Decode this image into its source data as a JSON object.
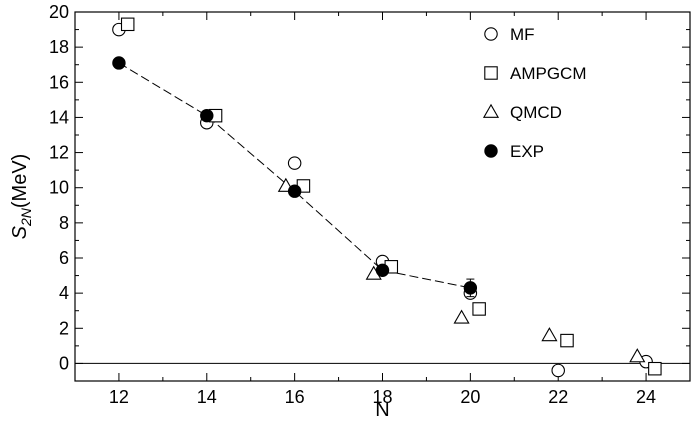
{
  "chart_data": {
    "type": "scatter",
    "xlabel": "N",
    "ylabel": {
      "main": "S",
      "sub": "2N",
      "unit": "(MeV)"
    },
    "xlim": [
      11,
      25
    ],
    "ylim": [
      -1,
      20
    ],
    "xticks": [
      12,
      14,
      16,
      18,
      20,
      22,
      24
    ],
    "yticks": [
      0,
      2,
      4,
      6,
      8,
      10,
      12,
      14,
      16,
      18,
      20
    ],
    "grid": false,
    "zero_line": true,
    "legend_position": "top-right",
    "series": [
      {
        "name": "MF",
        "marker": "open-circle",
        "points": [
          [
            12,
            19.0
          ],
          [
            14,
            13.7
          ],
          [
            16,
            11.4
          ],
          [
            18,
            5.8
          ],
          [
            20,
            4.0
          ],
          [
            22,
            -0.4
          ],
          [
            24,
            0.1
          ]
        ]
      },
      {
        "name": "AMPGCM",
        "marker": "open-square",
        "points": [
          [
            12.2,
            19.3
          ],
          [
            14.2,
            14.1
          ],
          [
            16.2,
            10.1
          ],
          [
            18.2,
            5.5
          ],
          [
            20.2,
            3.1
          ],
          [
            22.2,
            1.3
          ],
          [
            24.2,
            -0.3
          ]
        ]
      },
      {
        "name": "QMCD",
        "marker": "open-triangle",
        "points": [
          [
            15.8,
            10.1
          ],
          [
            17.8,
            5.1
          ],
          [
            19.8,
            2.6
          ],
          [
            21.8,
            1.6
          ],
          [
            23.8,
            0.4
          ]
        ]
      },
      {
        "name": "EXP",
        "marker": "filled-circle",
        "connected": true,
        "line_style": "dashed",
        "points": [
          [
            12,
            17.1
          ],
          [
            14,
            14.1
          ],
          [
            16,
            9.8
          ],
          [
            18,
            5.3
          ],
          [
            20,
            4.3
          ]
        ],
        "errors": [
          0,
          0,
          0,
          0,
          0.5
        ]
      }
    ]
  }
}
